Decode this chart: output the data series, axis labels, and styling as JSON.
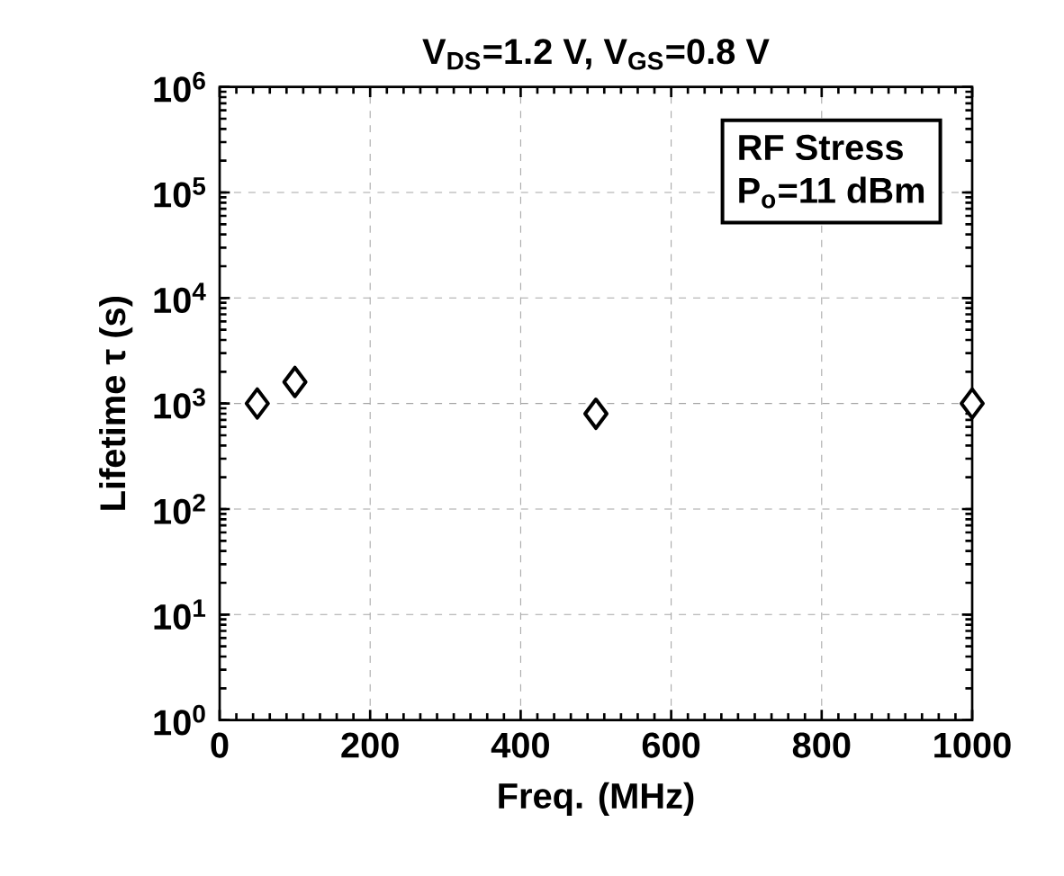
{
  "chart_data": {
    "type": "scatter",
    "title": "V$_{DS}$=1.2 V, V$_{GS}$=0.8 V",
    "xlabel": "Freq. (MHz)",
    "ylabel": "Lifetime τ (s)",
    "annotations": [
      "RF Stress",
      "P$_{o}$=11 dBm"
    ],
    "x": [
      50,
      100,
      500,
      1000
    ],
    "series": [
      {
        "color": "#000000",
        "values": [
          1000,
          1600,
          800,
          1000
        ]
      }
    ],
    "xlim": [
      0,
      1000
    ],
    "xticks": [
      0,
      200,
      400,
      600,
      800,
      1000
    ],
    "ylim": [
      1,
      1000000
    ],
    "yticks": [
      {
        "value": 1,
        "label": "10$^{0}$"
      },
      {
        "value": 10,
        "label": "10$^{1}$"
      },
      {
        "value": 100,
        "label": "10$^{2}$"
      },
      {
        "value": 1000,
        "label": "10$^{3}$"
      },
      {
        "value": 10000,
        "label": "10$^{4}$"
      },
      {
        "value": 100000,
        "label": "10$^{5}$"
      },
      {
        "value": 1000000,
        "label": "10$^{6}$"
      }
    ],
    "log": "y",
    "grid": true,
    "marker": "diamond"
  }
}
